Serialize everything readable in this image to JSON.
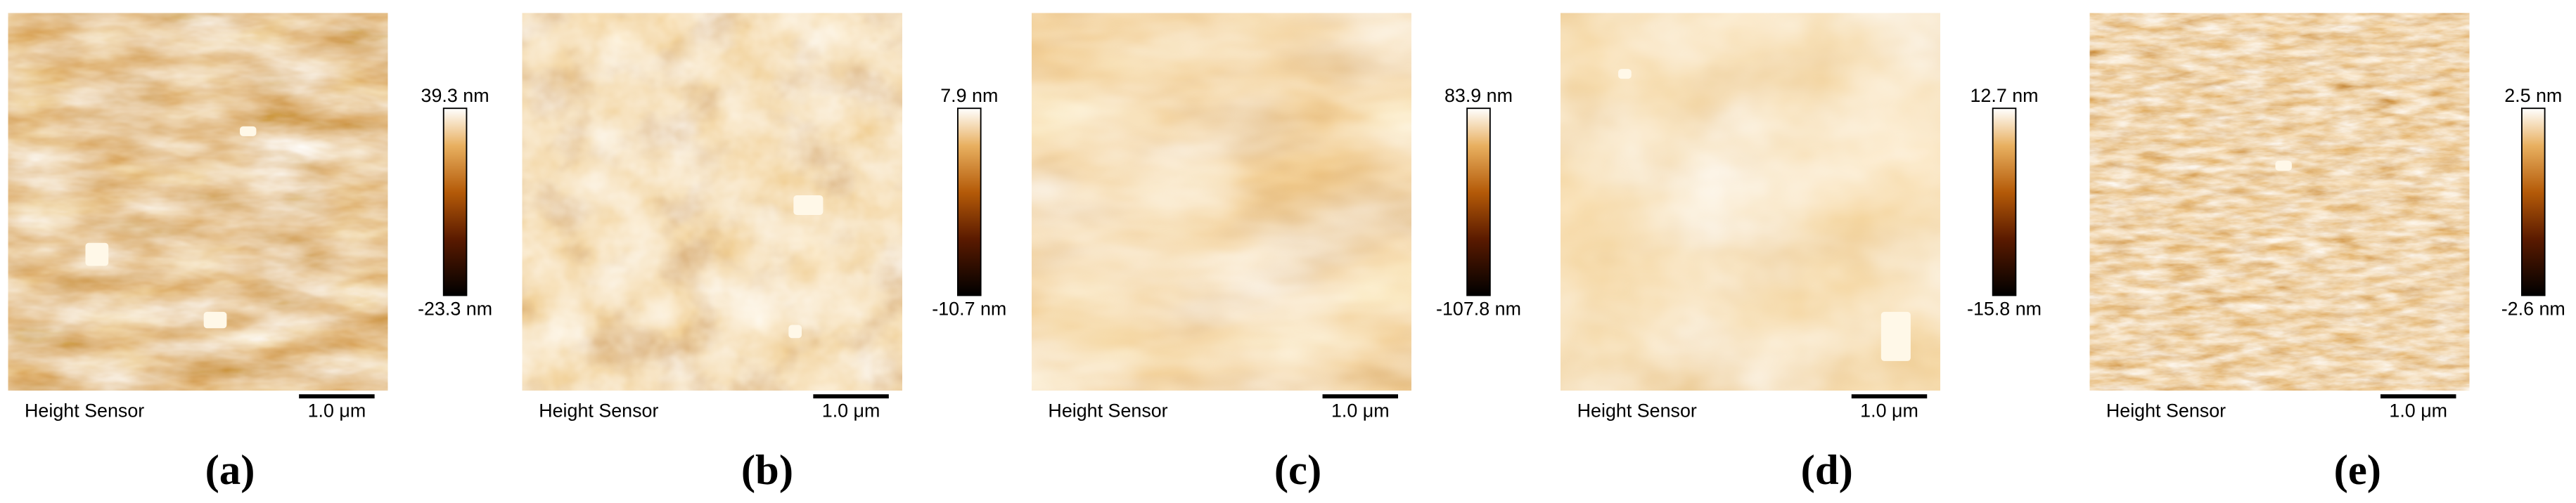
{
  "panels": [
    {
      "label": "(a)",
      "colorbar_max": "39.3 nm",
      "colorbar_min": "-23.3 nm",
      "sensor": "Height Sensor",
      "scalebar": "1.0 μm"
    },
    {
      "label": "(b)",
      "colorbar_max": "7.9 nm",
      "colorbar_min": "-10.7 nm",
      "sensor": "Height Sensor",
      "scalebar": "1.0 μm"
    },
    {
      "label": "(c)",
      "colorbar_max": "83.9 nm",
      "colorbar_min": "-107.8 nm",
      "sensor": "Height Sensor",
      "scalebar": "1.0 μm"
    },
    {
      "label": "(d)",
      "colorbar_max": "12.7 nm",
      "colorbar_min": "-15.8 nm",
      "sensor": "Height Sensor",
      "scalebar": "1.0 μm"
    },
    {
      "label": "(e)",
      "colorbar_max": "2.5 nm",
      "colorbar_min": "-2.6 nm",
      "sensor": "Height Sensor",
      "scalebar": "1.0 μm"
    }
  ]
}
